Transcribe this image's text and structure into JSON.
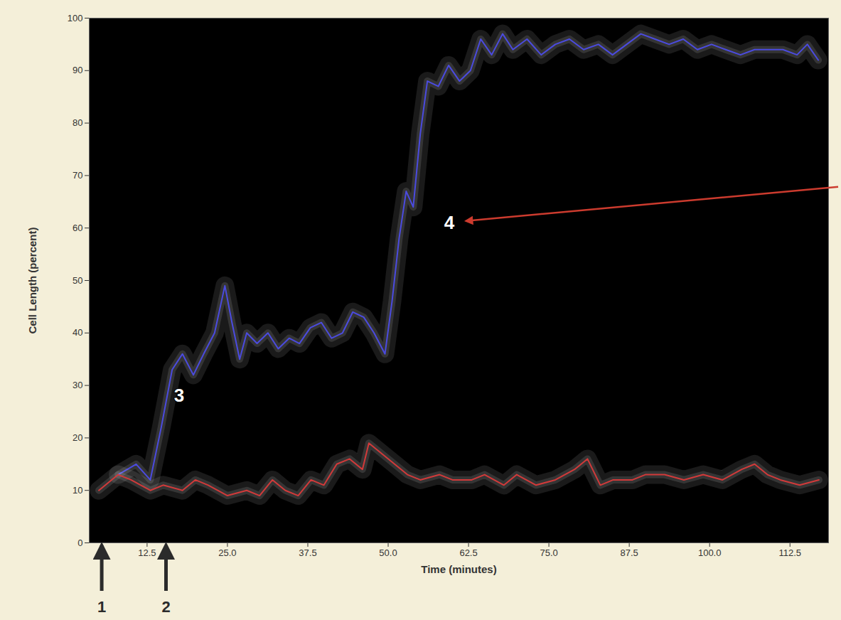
{
  "chart_data": {
    "type": "line",
    "x_label": "Time (minutes)",
    "y_label": "Cell Length (percent)",
    "xlim": [
      3.5,
      118.5
    ],
    "ylim": [
      0,
      100
    ],
    "xticks": [
      12.5,
      {
        "value": 25,
        "label": "25.0"
      },
      37.5,
      {
        "value": 50,
        "label": "50.0"
      },
      62.5,
      {
        "value": 75,
        "label": "75.0"
      },
      87.5,
      {
        "value": 100,
        "label": "100.0"
      },
      112.5
    ],
    "yticks": [
      0,
      10,
      20,
      30,
      40,
      50,
      60,
      70,
      80,
      90,
      100
    ],
    "series": [
      {
        "color": "#4b4be0",
        "x": [
          8,
          10.8,
          13,
          14.7,
          16.4,
          18,
          19.7,
          21.3,
          23,
          24.6,
          25.7,
          26.9,
          28,
          29.6,
          31.3,
          32.9,
          34.6,
          36.2,
          37.9,
          39.6,
          41.2,
          42.9,
          44.5,
          46.2,
          47.8,
          49.5,
          50.6,
          51.7,
          52.8,
          53.9,
          55,
          56.1,
          57.8,
          59.4,
          61.1,
          62.8,
          64.4,
          66.1,
          67.8,
          69.4,
          71.6,
          73.8,
          76,
          78.2,
          80.4,
          82.7,
          84.9,
          87.1,
          89.3,
          91.5,
          93.7,
          95.9,
          98.1,
          100.3,
          102.5,
          104.8,
          107,
          109.2,
          111.4,
          113.6,
          115.2,
          116.9
        ],
        "values": [
          13,
          15,
          12,
          22,
          33,
          36,
          32,
          36,
          40,
          49,
          42,
          35,
          40,
          38,
          40,
          37,
          39,
          38,
          41,
          42,
          39,
          40,
          44,
          43,
          40,
          36,
          46,
          58,
          67,
          64,
          78,
          88,
          87,
          91,
          88,
          90,
          96,
          93,
          97,
          94,
          96,
          93,
          95,
          96,
          94,
          95,
          93,
          95,
          97,
          96,
          95,
          96,
          94,
          95,
          94,
          93,
          94,
          94,
          94,
          93,
          95,
          92
        ]
      },
      {
        "color": "#d23a3a",
        "x": [
          5,
          8,
          10,
          13,
          15,
          18,
          20,
          22,
          25,
          28,
          30,
          32,
          34,
          36,
          38,
          40,
          42,
          44,
          46,
          47,
          49,
          51,
          53,
          55,
          58,
          60,
          63,
          65,
          68,
          70,
          73,
          76,
          79,
          81,
          83,
          85,
          88,
          90,
          93,
          96,
          99,
          102,
          105,
          107,
          109,
          111,
          114,
          117
        ],
        "values": [
          10,
          13,
          12,
          10,
          11,
          10,
          12,
          11,
          9,
          10,
          9,
          12,
          10,
          9,
          12,
          11,
          15,
          16,
          14,
          19,
          17,
          15,
          13,
          12,
          13,
          12,
          12,
          13,
          11,
          13,
          11,
          12,
          14,
          16,
          11,
          12,
          12,
          13,
          13,
          12,
          13,
          12,
          14,
          15,
          13,
          12,
          11,
          12
        ]
      }
    ],
    "annotations": [
      {
        "text": "1",
        "x": 5.5,
        "color": "#2b2b2b"
      },
      {
        "text": "2",
        "x": 15.5,
        "color": "#2b2b2b"
      },
      {
        "text": "3",
        "x": 17.5,
        "y": 28
      },
      {
        "text": "4",
        "x": 59.5,
        "y": 61,
        "color": "#cc3b2e"
      }
    ]
  }
}
